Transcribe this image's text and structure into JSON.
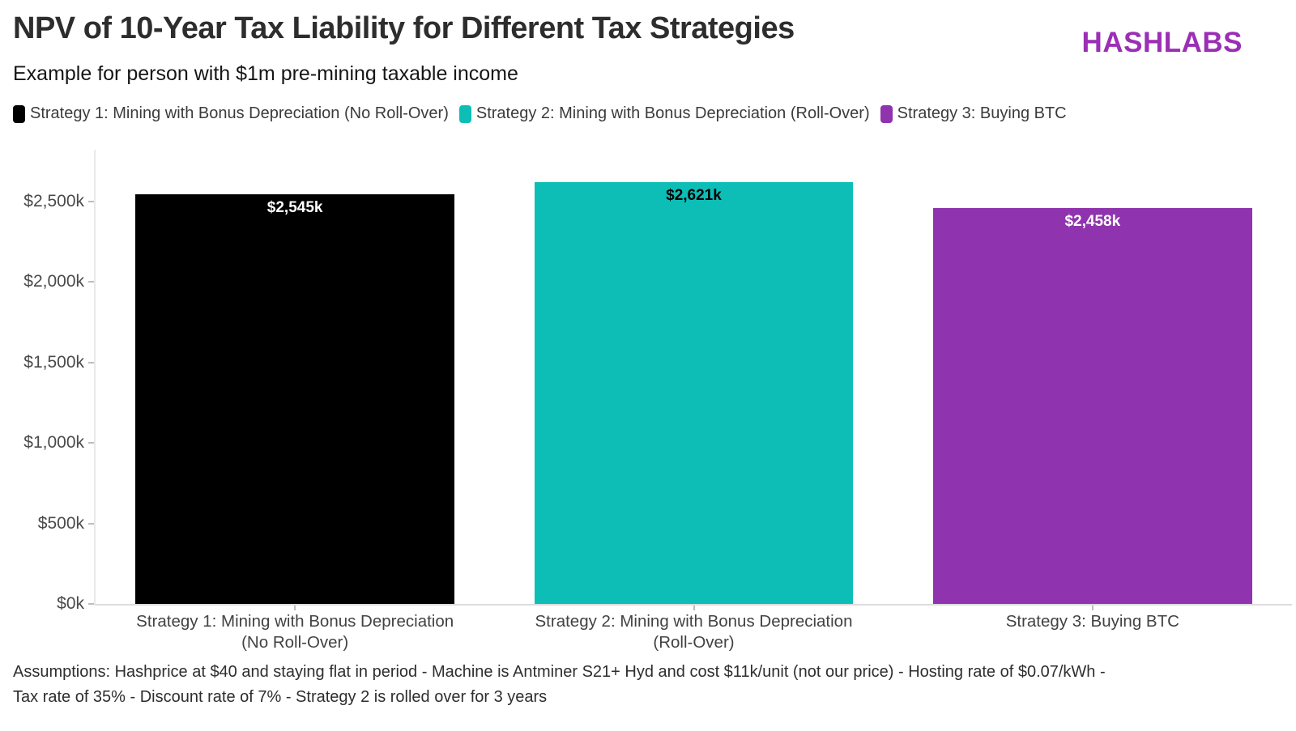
{
  "header": {
    "title": "NPV of 10-Year Tax Liability for Different Tax Strategies",
    "subtitle": "Example for person with $1m pre-mining taxable income",
    "brand": "HASHLABS",
    "brand_color": "#9b2fb5"
  },
  "chart_data": {
    "type": "bar",
    "title": "NPV of 10-Year Tax Liability for Different Tax Strategies",
    "subtitle": "Example for person with $1m pre-mining taxable income",
    "categories": [
      "Strategy 1: Mining with Bonus Depreciation\n(No Roll-Over)",
      "Strategy 2: Mining with Bonus Depreciation\n(Roll-Over)",
      "Strategy 3: Buying BTC"
    ],
    "values": [
      2545,
      2621,
      2458
    ],
    "value_labels": [
      "$2,545k",
      "$2,621k",
      "$2,458k"
    ],
    "bar_colors": [
      "#000000",
      "#0dbeb7",
      "#9033ae"
    ],
    "value_label_colors": [
      "#ffffff",
      "#000000",
      "#ffffff"
    ],
    "legend_entries": [
      {
        "label": "Strategy 1: Mining with Bonus Depreciation (No Roll-Over)",
        "color": "#000000"
      },
      {
        "label": "Strategy 2: Mining with Bonus Depreciation (Roll-Over)",
        "color": "#0dbeb7"
      },
      {
        "label": "Strategy 3: Buying BTC",
        "color": "#9033ae"
      }
    ],
    "legend_position": "top-left",
    "xlabel": "",
    "ylabel": "",
    "ylim": [
      0,
      2820
    ],
    "yticks": [
      0,
      500,
      1000,
      1500,
      2000,
      2500
    ],
    "ytick_labels": [
      "$0k",
      "$500k",
      "$1,000k",
      "$1,500k",
      "$2,000k",
      "$2,500k"
    ],
    "grid": false,
    "bar_width_fraction": 0.8
  },
  "footer": {
    "line1": "Assumptions: Hashprice at $40 and staying flat in period - Machine is Antminer S21+ Hyd and cost $11k/unit (not our price) - Hosting rate of $0.07/kWh -",
    "line2": "Tax rate of 35% - Discount rate of 7% - Strategy 2 is rolled over for 3 years"
  }
}
